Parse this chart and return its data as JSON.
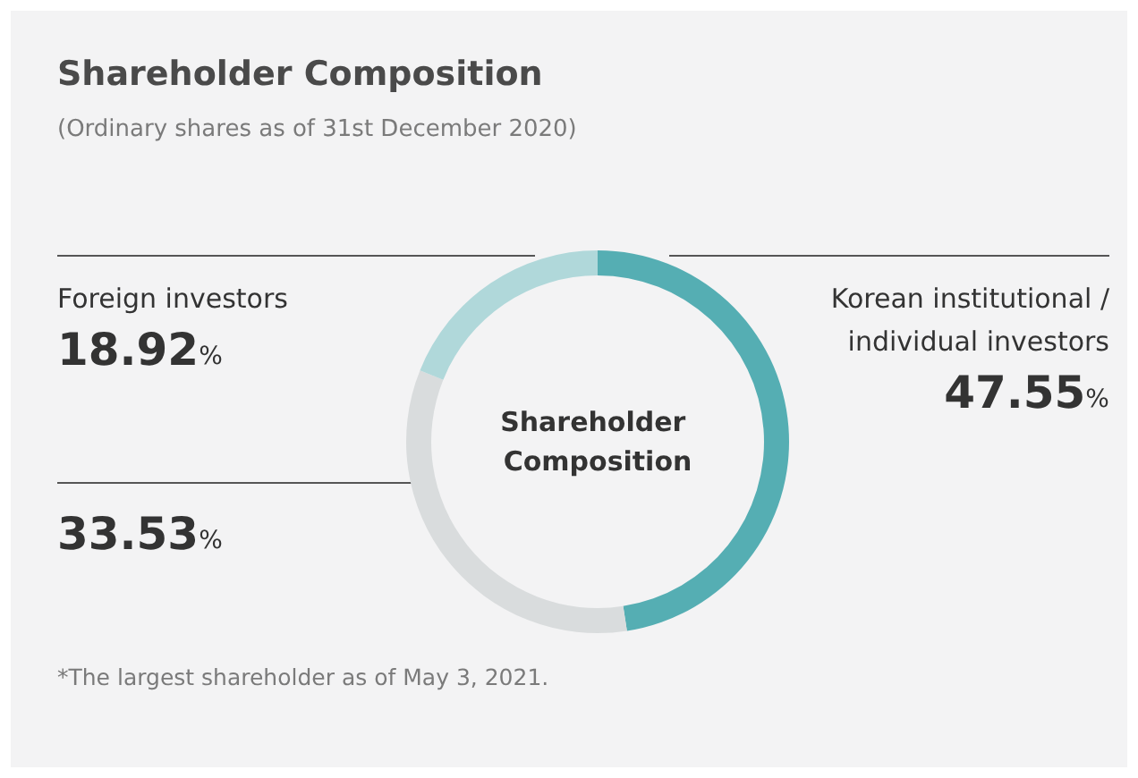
{
  "chart_data": {
    "type": "donut",
    "title": "Shareholder Composition",
    "subtitle": "(Ordinary shares as of 31st December 2020)",
    "categories": [
      "Korean institutional / individual investors",
      null,
      "Foreign investors"
    ],
    "values": [
      47.55,
      33.53,
      18.92
    ],
    "colors": [
      "#55aeb3",
      "#d9dcdd",
      "#b0d8da"
    ],
    "value_labels": [
      "47.55%",
      "33.53%",
      "18.92%"
    ],
    "legend": false,
    "annotations": [
      "Shareholder Composition",
      "*The largest shareholder as of May 3, 2021."
    ]
  }
}
